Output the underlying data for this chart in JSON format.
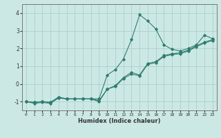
{
  "xlabel": "Humidex (Indice chaleur)",
  "x": [
    0,
    1,
    2,
    3,
    4,
    5,
    6,
    7,
    8,
    9,
    10,
    11,
    12,
    13,
    14,
    15,
    16,
    17,
    18,
    19,
    20,
    21,
    22,
    23
  ],
  "line1": [
    -1.0,
    -1.1,
    -1.05,
    -1.1,
    -0.8,
    -0.85,
    -0.85,
    -0.85,
    -0.85,
    -0.85,
    0.5,
    0.8,
    1.4,
    2.5,
    3.9,
    3.55,
    3.1,
    2.2,
    1.95,
    1.85,
    2.0,
    2.2,
    2.75,
    2.55
  ],
  "line2": [
    -1.0,
    -1.05,
    -1.0,
    -1.05,
    -0.75,
    -0.85,
    -0.85,
    -0.85,
    -0.85,
    -1.0,
    -0.3,
    -0.15,
    0.3,
    0.55,
    0.45,
    1.1,
    1.2,
    1.55,
    1.65,
    1.7,
    1.85,
    2.1,
    2.3,
    2.45
  ],
  "line3": [
    -1.0,
    -1.05,
    -1.0,
    -1.05,
    -0.75,
    -0.85,
    -0.85,
    -0.85,
    -0.85,
    -0.95,
    -0.3,
    -0.1,
    0.35,
    0.65,
    0.5,
    1.15,
    1.25,
    1.6,
    1.7,
    1.75,
    1.9,
    2.15,
    2.35,
    2.5
  ],
  "line_color": "#2e7d6e",
  "bg_color": "#cce8e5",
  "grid_color": "#aacfcc",
  "ylim": [
    -1.5,
    4.5
  ],
  "xlim": [
    -0.5,
    23.5
  ],
  "yticks": [
    -1,
    0,
    1,
    2,
    3,
    4
  ],
  "xticks": [
    0,
    1,
    2,
    3,
    4,
    5,
    6,
    7,
    8,
    9,
    10,
    11,
    12,
    13,
    14,
    15,
    16,
    17,
    18,
    19,
    20,
    21,
    22,
    23
  ]
}
